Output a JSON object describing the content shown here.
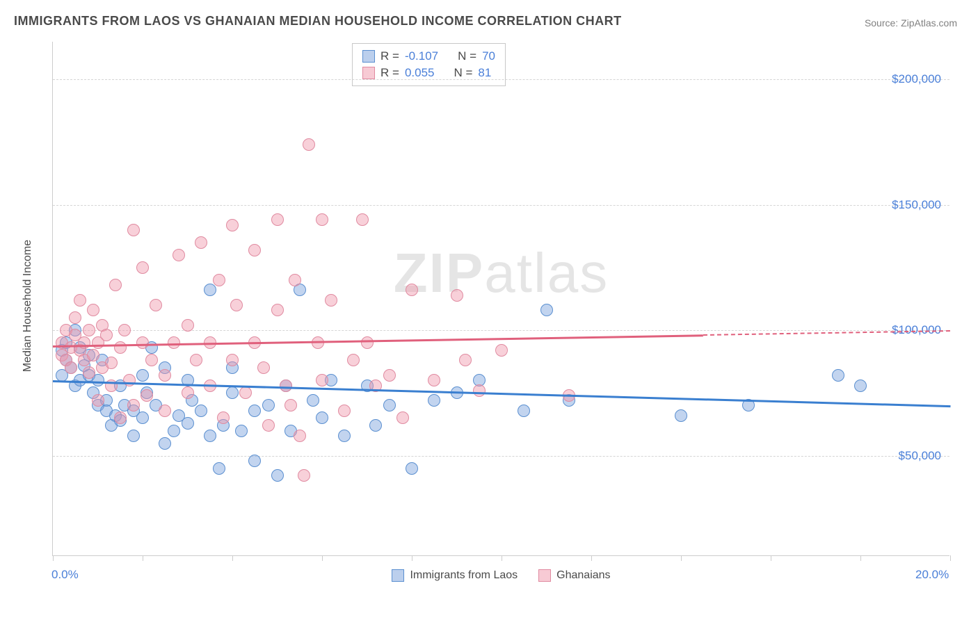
{
  "header": {
    "title": "IMMIGRANTS FROM LAOS VS GHANAIAN MEDIAN HOUSEHOLD INCOME CORRELATION CHART",
    "source_label": "Source: ",
    "source_value": "ZipAtlas.com"
  },
  "chart": {
    "type": "scatter",
    "y_axis_title": "Median Household Income",
    "xlim": [
      0,
      20
    ],
    "ylim": [
      10000,
      215000
    ],
    "x_tick_positions": [
      0,
      2,
      4,
      6,
      8,
      10,
      12,
      14,
      16,
      18,
      20
    ],
    "x_tick_labels_shown": {
      "0": "0.0%",
      "20": "20.0%"
    },
    "y_grid": [
      50000,
      100000,
      150000,
      200000
    ],
    "y_tick_labels": [
      "$50,000",
      "$100,000",
      "$150,000",
      "$200,000"
    ],
    "background_color": "#ffffff",
    "grid_color": "#d5d5d5",
    "axis_color": "#cccccc",
    "tick_label_color": "#4a7fd8",
    "tick_fontsize": 17,
    "axis_title_fontsize": 16,
    "marker_radius": 9,
    "series": [
      {
        "name": "Immigrants from Laos",
        "key": "laos",
        "color_fill": "rgba(120,160,220,0.45)",
        "color_border": "#5a8fd0",
        "R": "-0.107",
        "N": "70",
        "trend": {
          "x1": 0,
          "y1": 80000,
          "x2": 20,
          "y2": 70000,
          "solid_until_x": 20,
          "color": "#3a7fd0"
        },
        "points": [
          [
            0.2,
            82000
          ],
          [
            0.2,
            92000
          ],
          [
            0.3,
            95000
          ],
          [
            0.3,
            88000
          ],
          [
            0.4,
            85000
          ],
          [
            0.5,
            78000
          ],
          [
            0.5,
            100000
          ],
          [
            0.6,
            93000
          ],
          [
            0.6,
            80000
          ],
          [
            0.7,
            86000
          ],
          [
            0.8,
            82000
          ],
          [
            0.8,
            90000
          ],
          [
            0.9,
            75000
          ],
          [
            1.0,
            80000
          ],
          [
            1.0,
            70000
          ],
          [
            1.1,
            88000
          ],
          [
            1.2,
            72000
          ],
          [
            1.2,
            68000
          ],
          [
            1.3,
            62000
          ],
          [
            1.4,
            66000
          ],
          [
            1.5,
            78000
          ],
          [
            1.5,
            64000
          ],
          [
            1.6,
            70000
          ],
          [
            1.8,
            68000
          ],
          [
            1.8,
            58000
          ],
          [
            2.0,
            82000
          ],
          [
            2.0,
            65000
          ],
          [
            2.1,
            75000
          ],
          [
            2.2,
            93000
          ],
          [
            2.3,
            70000
          ],
          [
            2.5,
            85000
          ],
          [
            2.5,
            55000
          ],
          [
            2.7,
            60000
          ],
          [
            2.8,
            66000
          ],
          [
            3.0,
            80000
          ],
          [
            3.0,
            63000
          ],
          [
            3.1,
            72000
          ],
          [
            3.3,
            68000
          ],
          [
            3.5,
            116000
          ],
          [
            3.5,
            58000
          ],
          [
            3.7,
            45000
          ],
          [
            3.8,
            62000
          ],
          [
            4.0,
            85000
          ],
          [
            4.0,
            75000
          ],
          [
            4.2,
            60000
          ],
          [
            4.5,
            68000
          ],
          [
            4.5,
            48000
          ],
          [
            4.8,
            70000
          ],
          [
            5.0,
            42000
          ],
          [
            5.2,
            78000
          ],
          [
            5.3,
            60000
          ],
          [
            5.5,
            116000
          ],
          [
            5.8,
            72000
          ],
          [
            6.0,
            65000
          ],
          [
            6.2,
            80000
          ],
          [
            6.5,
            58000
          ],
          [
            7.0,
            78000
          ],
          [
            7.2,
            62000
          ],
          [
            7.5,
            70000
          ],
          [
            8.0,
            45000
          ],
          [
            8.5,
            72000
          ],
          [
            9.0,
            75000
          ],
          [
            9.5,
            80000
          ],
          [
            10.5,
            68000
          ],
          [
            11.0,
            108000
          ],
          [
            11.5,
            72000
          ],
          [
            14.0,
            66000
          ],
          [
            15.5,
            70000
          ],
          [
            17.5,
            82000
          ],
          [
            18.0,
            78000
          ]
        ]
      },
      {
        "name": "Ghanaians",
        "key": "ghana",
        "color_fill": "rgba(240,150,170,0.45)",
        "color_border": "#e08aa0",
        "R": "0.055",
        "N": "81",
        "trend": {
          "x1": 0,
          "y1": 94000,
          "x2": 20,
          "y2": 100000,
          "solid_until_x": 14.5,
          "color": "#e0607c"
        },
        "points": [
          [
            0.2,
            90000
          ],
          [
            0.2,
            95000
          ],
          [
            0.3,
            88000
          ],
          [
            0.3,
            100000
          ],
          [
            0.4,
            93000
          ],
          [
            0.4,
            85000
          ],
          [
            0.5,
            98000
          ],
          [
            0.5,
            105000
          ],
          [
            0.6,
            92000
          ],
          [
            0.6,
            112000
          ],
          [
            0.7,
            88000
          ],
          [
            0.7,
            95000
          ],
          [
            0.8,
            100000
          ],
          [
            0.8,
            83000
          ],
          [
            0.9,
            90000
          ],
          [
            0.9,
            108000
          ],
          [
            1.0,
            95000
          ],
          [
            1.0,
            72000
          ],
          [
            1.1,
            102000
          ],
          [
            1.1,
            85000
          ],
          [
            1.2,
            98000
          ],
          [
            1.3,
            87000
          ],
          [
            1.3,
            78000
          ],
          [
            1.4,
            118000
          ],
          [
            1.5,
            93000
          ],
          [
            1.5,
            65000
          ],
          [
            1.6,
            100000
          ],
          [
            1.7,
            80000
          ],
          [
            1.8,
            140000
          ],
          [
            1.8,
            70000
          ],
          [
            2.0,
            95000
          ],
          [
            2.0,
            125000
          ],
          [
            2.1,
            74000
          ],
          [
            2.2,
            88000
          ],
          [
            2.3,
            110000
          ],
          [
            2.5,
            82000
          ],
          [
            2.5,
            68000
          ],
          [
            2.7,
            95000
          ],
          [
            2.8,
            130000
          ],
          [
            3.0,
            75000
          ],
          [
            3.0,
            102000
          ],
          [
            3.2,
            88000
          ],
          [
            3.3,
            135000
          ],
          [
            3.5,
            78000
          ],
          [
            3.5,
            95000
          ],
          [
            3.7,
            120000
          ],
          [
            3.8,
            65000
          ],
          [
            4.0,
            88000
          ],
          [
            4.0,
            142000
          ],
          [
            4.1,
            110000
          ],
          [
            4.3,
            75000
          ],
          [
            4.5,
            95000
          ],
          [
            4.5,
            132000
          ],
          [
            4.7,
            85000
          ],
          [
            4.8,
            62000
          ],
          [
            5.0,
            108000
          ],
          [
            5.0,
            144000
          ],
          [
            5.2,
            78000
          ],
          [
            5.3,
            70000
          ],
          [
            5.4,
            120000
          ],
          [
            5.5,
            58000
          ],
          [
            5.6,
            42000
          ],
          [
            5.7,
            174000
          ],
          [
            5.9,
            95000
          ],
          [
            6.0,
            144000
          ],
          [
            6.0,
            80000
          ],
          [
            6.2,
            112000
          ],
          [
            6.5,
            68000
          ],
          [
            6.7,
            88000
          ],
          [
            6.9,
            144000
          ],
          [
            7.0,
            95000
          ],
          [
            7.2,
            78000
          ],
          [
            7.5,
            82000
          ],
          [
            7.8,
            65000
          ],
          [
            8.0,
            116000
          ],
          [
            8.5,
            80000
          ],
          [
            9.0,
            114000
          ],
          [
            9.2,
            88000
          ],
          [
            9.5,
            76000
          ],
          [
            10.0,
            92000
          ],
          [
            11.5,
            74000
          ]
        ]
      }
    ],
    "legend_top": {
      "r_label": "R = ",
      "n_label": "N = "
    },
    "legend_bottom": {
      "items": [
        "Immigrants from Laos",
        "Ghanaians"
      ]
    },
    "watermark": {
      "text1": "ZIP",
      "text2": "atlas"
    }
  }
}
